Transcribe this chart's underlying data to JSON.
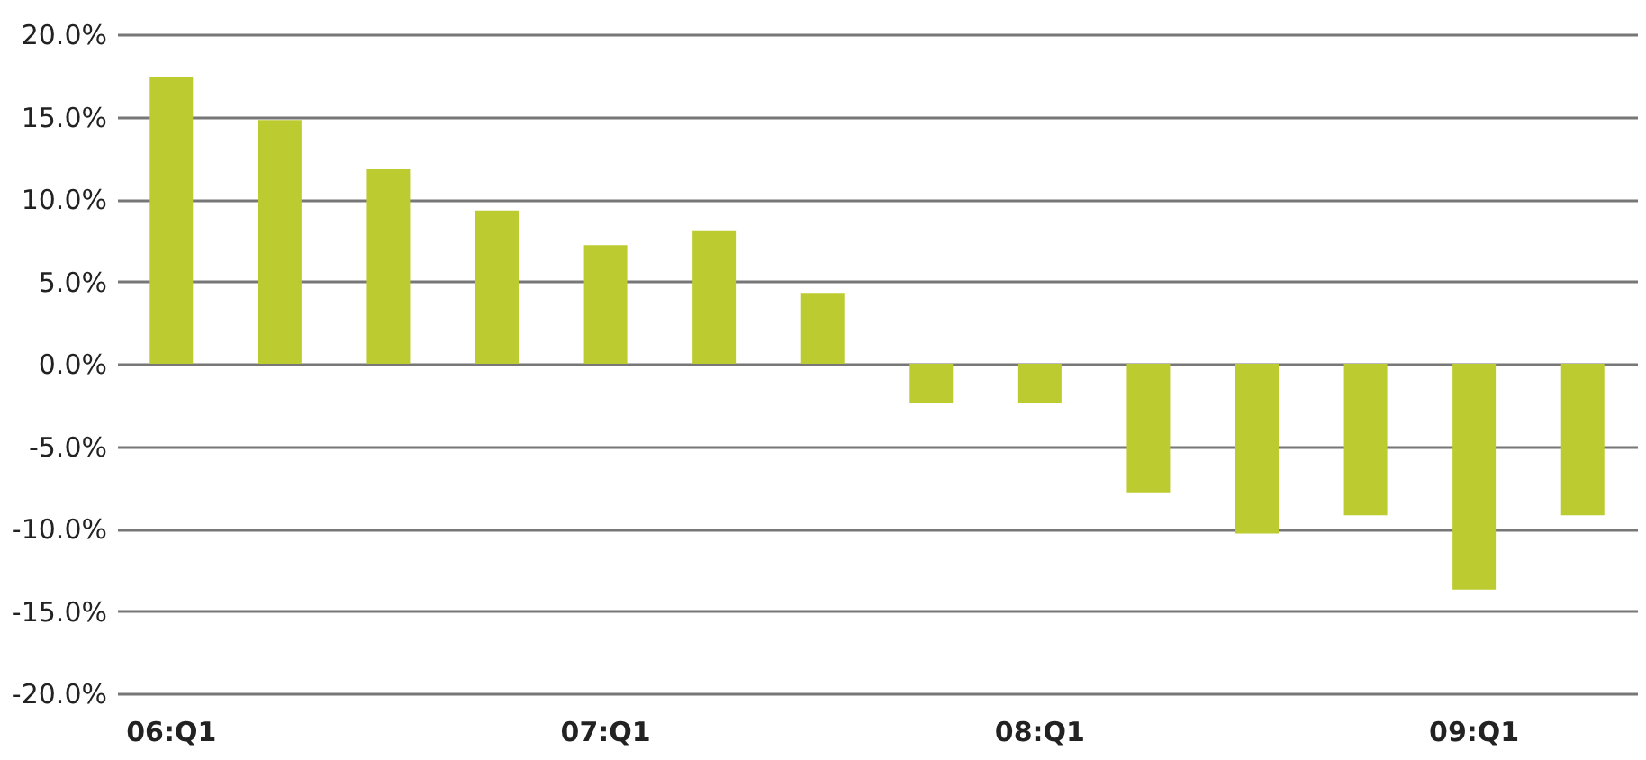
{
  "chart_data": {
    "type": "bar",
    "categories": [
      "06:Q1",
      null,
      null,
      null,
      "07:Q1",
      null,
      null,
      null,
      "08:Q1",
      null,
      null,
      null,
      "09:Q1",
      null
    ],
    "values": [
      17.4,
      14.8,
      11.8,
      9.3,
      7.2,
      8.1,
      4.3,
      -2.4,
      -2.4,
      -7.8,
      -10.3,
      -9.2,
      -13.7,
      -9.2
    ],
    "color": "#bccb2f",
    "ylim": [
      -20,
      20
    ],
    "yticks": [
      {
        "value": -20,
        "label": "-20.0%"
      },
      {
        "value": -15,
        "label": "-15.0%"
      },
      {
        "value": -10,
        "label": "-10.0%"
      },
      {
        "value": -5,
        "label": "-5.0%"
      },
      {
        "value": 0,
        "label": "0.0%"
      },
      {
        "value": 5,
        "label": "5.0%"
      },
      {
        "value": 10,
        "label": "10.0%"
      },
      {
        "value": 15,
        "label": "15.0%"
      },
      {
        "value": 20,
        "label": "20.0%"
      }
    ],
    "grid": "y"
  }
}
